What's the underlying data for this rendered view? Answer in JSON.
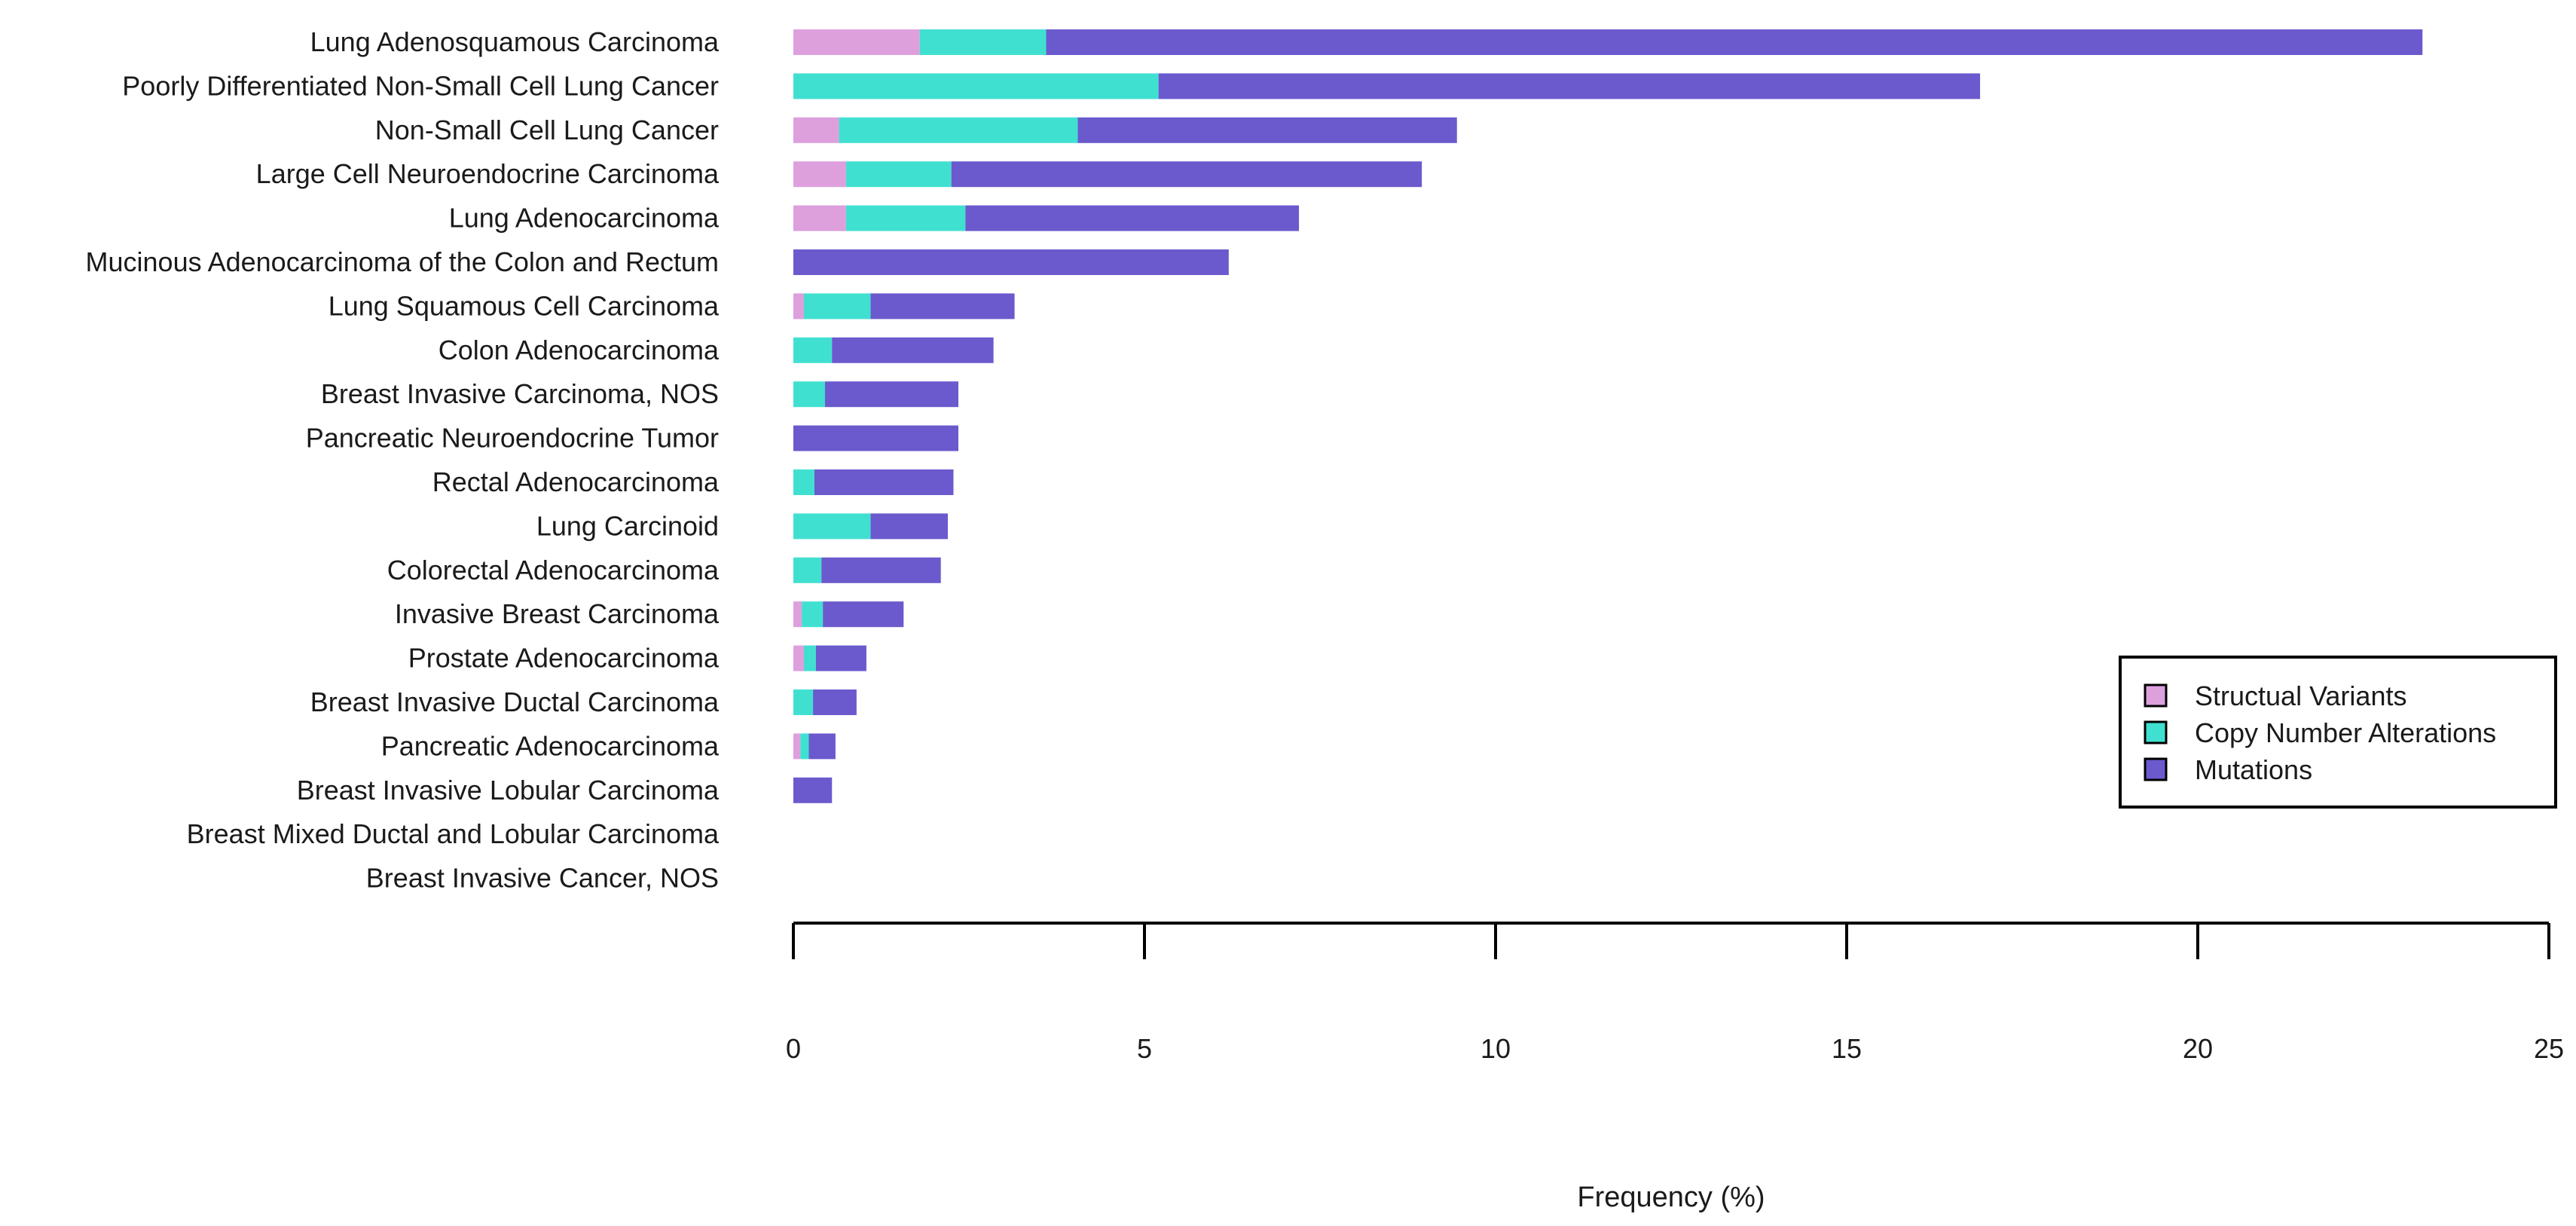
{
  "chart_data": {
    "type": "bar",
    "orientation": "horizontal",
    "stacked": true,
    "title": "",
    "xlabel": "Frequency (%)",
    "ylabel": "",
    "xlim": [
      0,
      25
    ],
    "xticks": [
      "0",
      "5",
      "10",
      "15",
      "20",
      "25"
    ],
    "categories": [
      "Lung Adenosquamous Carcinoma",
      "Poorly Differentiated Non-Small Cell Lung Cancer",
      "Non-Small Cell Lung Cancer",
      "Large Cell Neuroendocrine Carcinoma",
      "Lung Adenocarcinoma",
      "Mucinous Adenocarcinoma of the Colon and Rectum",
      "Lung Squamous Cell Carcinoma",
      "Colon Adenocarcinoma",
      "Breast Invasive Carcinoma, NOS",
      "Pancreatic Neuroendocrine Tumor",
      "Rectal Adenocarcinoma",
      "Lung Carcinoid",
      "Colorectal Adenocarcinoma",
      "Invasive Breast Carcinoma",
      "Prostate Adenocarcinoma",
      "Breast Invasive Ductal Carcinoma",
      "Pancreatic Adenocarcinoma",
      "Breast Invasive Lobular Carcinoma",
      "Breast Mixed Ductal and Lobular Carcinoma",
      "Breast Invasive Cancer, NOS"
    ],
    "series": [
      {
        "name": "Structual Variants",
        "color": "#dda0dd",
        "values": [
          1.8,
          0,
          0.65,
          0.75,
          0.75,
          0,
          0.15,
          0,
          0,
          0,
          0,
          0,
          0,
          0.12,
          0.15,
          0,
          0.1,
          0,
          0,
          0
        ]
      },
      {
        "name": "Copy Number Alterations",
        "color": "#40e0d0",
        "values": [
          1.8,
          5.2,
          3.4,
          1.5,
          1.7,
          0,
          0.95,
          0.55,
          0.45,
          0,
          0.3,
          1.1,
          0.4,
          0.3,
          0.17,
          0.28,
          0.12,
          0,
          0,
          0
        ]
      },
      {
        "name": "Mutations",
        "color": "#6a5acd",
        "values": [
          19.6,
          11.7,
          5.4,
          6.7,
          4.75,
          6.2,
          2.05,
          2.3,
          1.9,
          2.35,
          1.98,
          1.1,
          1.7,
          1.15,
          0.72,
          0.62,
          0.38,
          0.55,
          0,
          0
        ]
      }
    ],
    "legend": {
      "position": "right",
      "entries": [
        "Structual Variants",
        "Copy Number Alterations",
        "Mutations"
      ]
    }
  }
}
